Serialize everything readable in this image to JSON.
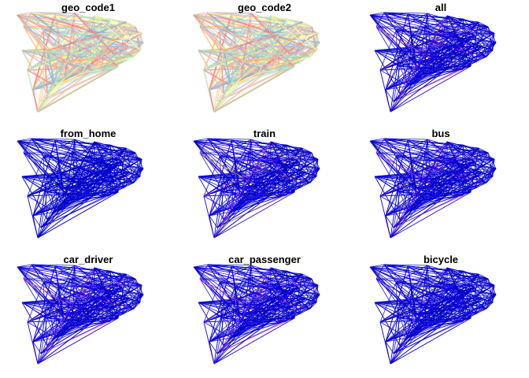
{
  "chart_data": {
    "type": "map",
    "layout": "3x3 small multiples of flow-line maps",
    "panels": [
      {
        "title": "geo_code1",
        "palette": "categorical",
        "colors": [
          "#ff7f7f",
          "#ffff99",
          "#b3e2cd",
          "#fbb4ae",
          "#8dd3c7",
          "#bebada",
          "#80b1d3",
          "#fdb462",
          "#ccebc5"
        ]
      },
      {
        "title": "geo_code2",
        "palette": "categorical",
        "colors": [
          "#ff7f7f",
          "#ffff99",
          "#b3e2cd",
          "#fbb4ae",
          "#8dd3c7",
          "#bebada",
          "#80b1d3",
          "#fdb462",
          "#ccebc5"
        ]
      },
      {
        "title": "all",
        "palette": "sequential",
        "colors": [
          "#0000cc",
          "#3300ff",
          "#8a2be2",
          "#ff44cc"
        ]
      },
      {
        "title": "from_home",
        "palette": "sequential",
        "colors": [
          "#0000cc",
          "#0000cc",
          "#0000cc",
          "#1a00e0"
        ]
      },
      {
        "title": "train",
        "palette": "sequential",
        "colors": [
          "#0000cc",
          "#3300ff",
          "#cc33ff",
          "#ff66aa",
          "#ffaa33"
        ]
      },
      {
        "title": "bus",
        "palette": "sequential",
        "colors": [
          "#0000cc",
          "#2200ee",
          "#7a00ff",
          "#cc33ff"
        ]
      },
      {
        "title": "car_driver",
        "palette": "sequential",
        "colors": [
          "#0000cc",
          "#3300ff",
          "#9933ff",
          "#ff44cc"
        ]
      },
      {
        "title": "car_passenger",
        "palette": "sequential",
        "colors": [
          "#0000cc",
          "#3300ff",
          "#9933ff",
          "#ff44cc"
        ]
      },
      {
        "title": "bicycle",
        "palette": "sequential",
        "colors": [
          "#0000cc",
          "#1a00e0",
          "#3300ff"
        ]
      }
    ]
  }
}
